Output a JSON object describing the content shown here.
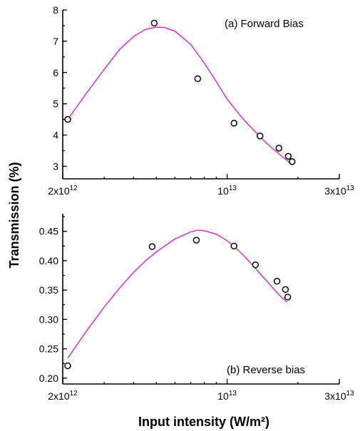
{
  "chart_data": [
    {
      "type": "scatter",
      "panel_label": "(a) Forward Bias",
      "ylabel": "Transmission (%)",
      "xlabel": "Input intensity (W/m²)",
      "x_scale": "log",
      "xlim": [
        2000000000000,
        30000000000000
      ],
      "ylim": [
        2.6,
        8.0
      ],
      "x_ticks": [
        {
          "value": 2000000000000,
          "mantissa": "2x10",
          "exp": "12"
        },
        {
          "value": 10000000000000,
          "mantissa": "10",
          "exp": "13"
        },
        {
          "value": 30000000000000,
          "mantissa": "3x10",
          "exp": "13"
        }
      ],
      "y_ticks": [
        3,
        4,
        5,
        6,
        7,
        8
      ],
      "y_minor_step": 0.5,
      "grid": false,
      "series": [
        {
          "points": [
            {
              "x": 2100000000000,
              "y": 4.5
            },
            {
              "x": 4900000000000,
              "y": 7.58
            },
            {
              "x": 7500000000000,
              "y": 5.8
            },
            {
              "x": 10700000000000,
              "y": 4.38
            },
            {
              "x": 13800000000000,
              "y": 3.97
            },
            {
              "x": 16600000000000,
              "y": 3.58
            },
            {
              "x": 18200000000000,
              "y": 3.32
            },
            {
              "x": 18900000000000,
              "y": 3.15
            }
          ]
        }
      ],
      "fit_curve": {
        "x": [
          2100000000000,
          2500000000000,
          3000000000000,
          3500000000000,
          4000000000000,
          4500000000000,
          5000000000000,
          5400000000000,
          6000000000000,
          7000000000000,
          8000000000000,
          9000000000000,
          10000000000000,
          11000000000000,
          12000000000000,
          13000000000000,
          14000000000000,
          15000000000000,
          16000000000000,
          17000000000000,
          18000000000000,
          18900000000000
        ],
        "y": [
          4.5,
          5.3,
          6.1,
          6.75,
          7.15,
          7.38,
          7.45,
          7.44,
          7.32,
          6.9,
          6.3,
          5.7,
          5.15,
          4.75,
          4.42,
          4.15,
          3.9,
          3.68,
          3.5,
          3.33,
          3.18,
          3.05
        ]
      }
    },
    {
      "type": "scatter",
      "panel_label": "(b) Reverse bias",
      "xlabel": "Input intensity (W/m²)",
      "x_scale": "log",
      "xlim": [
        2000000000000,
        30000000000000
      ],
      "ylim": [
        0.19,
        0.48
      ],
      "x_ticks": [
        {
          "value": 2000000000000,
          "mantissa": "2x10",
          "exp": "12"
        },
        {
          "value": 10000000000000,
          "mantissa": "10",
          "exp": "13"
        },
        {
          "value": 30000000000000,
          "mantissa": "3x10",
          "exp": "13"
        }
      ],
      "y_ticks": [
        0.2,
        0.25,
        0.3,
        0.35,
        0.4,
        0.45
      ],
      "y_minor_step": 0.025,
      "grid": false,
      "series": [
        {
          "points": [
            {
              "x": 2100000000000,
              "y": 0.221
            },
            {
              "x": 4800000000000,
              "y": 0.424
            },
            {
              "x": 7400000000000,
              "y": 0.435
            },
            {
              "x": 10700000000000,
              "y": 0.425
            },
            {
              "x": 13200000000000,
              "y": 0.393
            },
            {
              "x": 16300000000000,
              "y": 0.365
            },
            {
              "x": 17700000000000,
              "y": 0.351
            },
            {
              "x": 18100000000000,
              "y": 0.338
            }
          ]
        }
      ],
      "fit_curve": {
        "x": [
          2100000000000,
          2500000000000,
          3000000000000,
          3500000000000,
          4000000000000,
          4500000000000,
          5000000000000,
          6000000000000,
          7000000000000,
          7500000000000,
          8000000000000,
          9000000000000,
          10000000000000,
          11000000000000,
          12000000000000,
          13000000000000,
          14000000000000,
          15000000000000,
          16000000000000,
          17000000000000,
          18000000000000
        ],
        "y": [
          0.234,
          0.278,
          0.321,
          0.354,
          0.38,
          0.4,
          0.415,
          0.437,
          0.449,
          0.452,
          0.451,
          0.445,
          0.434,
          0.42,
          0.405,
          0.39,
          0.375,
          0.362,
          0.349,
          0.338,
          0.329
        ]
      }
    }
  ]
}
